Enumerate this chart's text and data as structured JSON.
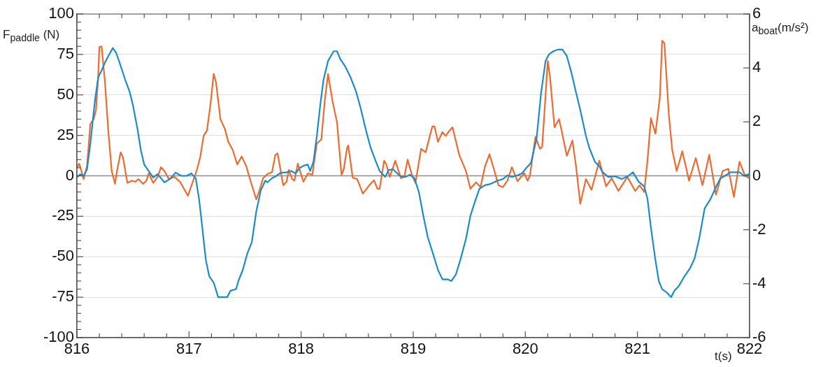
{
  "chart_data": {
    "type": "line",
    "xlabel": "t(s)",
    "ylabel": "F$_{paddle}$ (N)",
    "y2label": "a$_{boat}$(m/s²)",
    "xlim": [
      816,
      822
    ],
    "xticks": [
      816,
      {
        "value": 816.2,
        "label": null
      },
      {
        "value": 816.4,
        "label": null
      },
      {
        "value": 816.6,
        "label": null
      },
      {
        "value": 816.8,
        "label": null
      },
      817,
      {
        "value": 817.2,
        "label": null
      },
      {
        "value": 817.4,
        "label": null
      },
      {
        "value": 817.6,
        "label": null
      },
      {
        "value": 817.8,
        "label": null
      },
      818,
      {
        "value": 818.2,
        "label": null
      },
      {
        "value": 818.4,
        "label": null
      },
      {
        "value": 818.6,
        "label": null
      },
      {
        "value": 818.8,
        "label": null
      },
      819,
      {
        "value": 819.2,
        "label": null
      },
      {
        "value": 819.4,
        "label": null
      },
      {
        "value": 819.6,
        "label": null
      },
      {
        "value": 819.8,
        "label": null
      },
      820,
      {
        "value": 820.2,
        "label": null
      },
      {
        "value": 820.4,
        "label": null
      },
      {
        "value": 820.6,
        "label": null
      },
      {
        "value": 820.8,
        "label": null
      },
      821,
      {
        "value": 821.2,
        "label": null
      },
      {
        "value": 821.4,
        "label": null
      },
      {
        "value": 821.6,
        "label": null
      },
      {
        "value": 821.8,
        "label": null
      },
      822
    ],
    "ylim": [
      -100,
      100
    ],
    "yticks": [
      -100,
      {
        "value": -95,
        "label": null
      },
      {
        "value": -90,
        "label": null
      },
      {
        "value": -85,
        "label": null
      },
      {
        "value": -80,
        "label": null
      },
      -75,
      {
        "value": -70,
        "label": null
      },
      {
        "value": -65,
        "label": null
      },
      {
        "value": -60,
        "label": null
      },
      {
        "value": -55,
        "label": null
      },
      -50,
      {
        "value": -45,
        "label": null
      },
      {
        "value": -40,
        "label": null
      },
      {
        "value": -35,
        "label": null
      },
      {
        "value": -30,
        "label": null
      },
      -25,
      {
        "value": -20,
        "label": null
      },
      {
        "value": -15,
        "label": null
      },
      {
        "value": -10,
        "label": null
      },
      {
        "value": -5,
        "label": null
      },
      0,
      {
        "value": 5,
        "label": null
      },
      {
        "value": 10,
        "label": null
      },
      {
        "value": 15,
        "label": null
      },
      {
        "value": 20,
        "label": null
      },
      25,
      {
        "value": 30,
        "label": null
      },
      {
        "value": 35,
        "label": null
      },
      {
        "value": 40,
        "label": null
      },
      {
        "value": 45,
        "label": null
      },
      50,
      {
        "value": 55,
        "label": null
      },
      {
        "value": 60,
        "label": null
      },
      {
        "value": 65,
        "label": null
      },
      {
        "value": 70,
        "label": null
      },
      75,
      {
        "value": 80,
        "label": null
      },
      {
        "value": 85,
        "label": null
      },
      {
        "value": 90,
        "label": null
      },
      {
        "value": 95,
        "label": null
      },
      100
    ],
    "y2lim": [
      -6,
      6
    ],
    "y2ticks": [
      -6,
      -4,
      -2,
      0,
      2,
      4,
      6
    ],
    "grid": "y",
    "legend": false,
    "marker": "none",
    "line_style": "solid",
    "ref_lines": [
      {
        "axis": "y",
        "value": 0,
        "color": "#8c8c8c"
      }
    ],
    "series": [
      {
        "color": "#1b8cca",
        "x": [
          816.0,
          816.03,
          816.06,
          816.09,
          816.12,
          816.16,
          816.19,
          816.22,
          816.25,
          816.28,
          816.32,
          816.35,
          816.38,
          816.43,
          816.47,
          816.5,
          816.54,
          816.57,
          816.6,
          816.64,
          816.68,
          816.72,
          816.78,
          816.83,
          816.88,
          816.93,
          816.98,
          817.02,
          817.06,
          817.09,
          817.12,
          817.15,
          817.18,
          817.22,
          817.26,
          817.34,
          817.37,
          817.42,
          817.44,
          817.48,
          817.52,
          817.56,
          817.6,
          817.64,
          817.68,
          817.7,
          817.74,
          817.78,
          817.82,
          817.86,
          817.91,
          817.95,
          817.99,
          818.03,
          818.06,
          818.08,
          818.11,
          818.14,
          818.17,
          818.2,
          818.24,
          818.29,
          818.32,
          818.35,
          818.39,
          818.44,
          818.49,
          818.53,
          818.58,
          818.62,
          818.66,
          818.7,
          818.75,
          818.78,
          818.82,
          818.88,
          818.93,
          818.97,
          819.01,
          819.05,
          819.09,
          819.13,
          819.18,
          819.22,
          819.26,
          819.31,
          819.34,
          819.38,
          819.42,
          819.47,
          819.51,
          819.55,
          819.59,
          819.64,
          819.69,
          819.75,
          819.8,
          819.84,
          819.88,
          819.93,
          819.97,
          820.01,
          820.05,
          820.1,
          820.14,
          820.18,
          820.21,
          820.25,
          820.29,
          820.33,
          820.37,
          820.41,
          820.45,
          820.49,
          820.54,
          820.57,
          820.62,
          820.66,
          820.69,
          820.74,
          820.8,
          820.86,
          820.92,
          820.96,
          821.01,
          821.06,
          821.09,
          821.12,
          821.16,
          821.19,
          821.22,
          821.26,
          821.3,
          821.33,
          821.37,
          821.42,
          821.47,
          821.51,
          821.55,
          821.6,
          821.65,
          821.7,
          821.74,
          821.78,
          821.83,
          821.91,
          821.95,
          822.0
        ],
        "values": [
          -1,
          1,
          0,
          4,
          20,
          46,
          61,
          65,
          70,
          74,
          79,
          76,
          70,
          59.5,
          52,
          43.5,
          29,
          16,
          7,
          3,
          -1,
          1,
          -4,
          -2,
          2,
          0,
          0,
          1.5,
          -1.5,
          -14.5,
          -33,
          -52,
          -62,
          -66,
          -75,
          -75,
          -71,
          -70,
          -65,
          -58,
          -48,
          -41,
          -22,
          -9,
          -3,
          -4,
          -1.5,
          0,
          2,
          2,
          3,
          1.5,
          5,
          6.5,
          7,
          3,
          8.7,
          24.7,
          43.5,
          59.5,
          71,
          77,
          77,
          72,
          68,
          61,
          52,
          42,
          27.6,
          17.4,
          10,
          3,
          -0.7,
          3.6,
          4,
          0,
          -0.7,
          0.7,
          -1.5,
          -10,
          -24.7,
          -38,
          -49,
          -58,
          -64,
          -64,
          -65,
          -61,
          -52,
          -39,
          -24.7,
          -16,
          -8,
          -5.8,
          -5,
          -3,
          -2,
          0.3,
          -0.7,
          0.3,
          1.5,
          5,
          8,
          23,
          51,
          71,
          75,
          77,
          78,
          78,
          74,
          64,
          52,
          40.6,
          24.7,
          17.4,
          8.7,
          5.8,
          2.2,
          -0.7,
          -0.3,
          -2,
          0,
          2.2,
          -3.6,
          -6.5,
          -14.5,
          -32,
          -52,
          -65,
          -70,
          -72,
          -75,
          -71,
          -68,
          -62,
          -57,
          -51,
          -39,
          -20,
          -14.5,
          -7,
          -1.5,
          0,
          2.2,
          2.2,
          0,
          1.2
        ]
      },
      {
        "color": "#ee6a2e",
        "axis": "y2",
        "x": [
          816.0,
          816.02,
          816.04,
          816.06,
          816.09,
          816.12,
          816.15,
          816.17,
          816.19,
          816.2,
          816.22,
          816.25,
          816.28,
          816.31,
          816.34,
          816.36,
          816.39,
          816.41,
          816.45,
          816.49,
          816.52,
          816.55,
          816.59,
          816.62,
          816.64,
          816.68,
          816.72,
          816.75,
          816.78,
          816.82,
          816.87,
          816.92,
          816.96,
          816.99,
          817.03,
          817.07,
          817.1,
          817.13,
          817.16,
          817.19,
          817.22,
          817.24,
          817.28,
          817.32,
          817.35,
          817.39,
          817.43,
          817.47,
          817.51,
          817.56,
          817.6,
          817.63,
          817.66,
          817.7,
          817.74,
          817.77,
          817.79,
          817.84,
          817.87,
          817.89,
          817.92,
          817.94,
          817.97,
          818.02,
          818.06,
          818.1,
          818.14,
          818.18,
          818.21,
          818.24,
          818.28,
          818.32,
          818.36,
          818.38,
          818.41,
          818.42,
          818.46,
          818.5,
          818.55,
          818.6,
          818.65,
          818.68,
          818.7,
          818.74,
          818.76,
          818.79,
          818.84,
          818.89,
          818.92,
          818.95,
          818.99,
          819.02,
          819.07,
          819.11,
          819.17,
          819.19,
          819.22,
          819.26,
          819.29,
          819.32,
          819.35,
          819.41,
          819.47,
          819.51,
          819.56,
          819.6,
          819.64,
          819.68,
          819.72,
          819.76,
          819.8,
          819.84,
          819.88,
          819.93,
          819.99,
          820.02,
          820.04,
          820.09,
          820.13,
          820.15,
          820.2,
          820.22,
          820.26,
          820.3,
          820.32,
          820.37,
          820.42,
          820.45,
          820.49,
          820.54,
          820.59,
          820.66,
          820.72,
          820.77,
          820.83,
          820.91,
          820.98,
          821.02,
          821.06,
          821.09,
          821.12,
          821.16,
          821.2,
          821.22,
          821.24,
          821.28,
          821.31,
          821.35,
          821.4,
          821.46,
          821.52,
          821.58,
          821.64,
          821.7,
          821.76,
          821.81,
          821.86,
          821.91,
          821.96,
          822.0
        ],
        "values": [
          0.3,
          0.45,
          0.18,
          -0.12,
          0.36,
          1.92,
          2.1,
          2.44,
          3.66,
          4.77,
          4.8,
          3.48,
          1.66,
          0.18,
          -0.3,
          0.24,
          0.87,
          0.7,
          -0.26,
          -0.18,
          -0.22,
          -0.12,
          -0.3,
          -0.18,
          0.09,
          -0.26,
          -0.04,
          0.32,
          0.18,
          -0.12,
          -0.04,
          -0.22,
          -0.52,
          -0.74,
          -0.26,
          0.22,
          0.7,
          1.48,
          1.68,
          2.61,
          3.78,
          3.48,
          2.1,
          1.74,
          1.26,
          0.96,
          0.42,
          0.72,
          0.36,
          -0.35,
          -0.87,
          -0.52,
          -0.09,
          0.07,
          0.13,
          0.78,
          0.83,
          -0.35,
          -0.22,
          0.22,
          -0.12,
          -0.18,
          0.45,
          -0.22,
          0.09,
          0.04,
          1.2,
          1.35,
          2.76,
          3.78,
          2.76,
          1.98,
          0.04,
          0.24,
          1.04,
          1.13,
          -0.07,
          -0.12,
          -0.66,
          -0.39,
          -0.16,
          -0.48,
          -0.48,
          0.56,
          0.42,
          -0.04,
          0.56,
          -0.09,
          -0.04,
          0.6,
          0,
          -0.26,
          1,
          0.87,
          1.83,
          1.83,
          1.26,
          1.62,
          1.48,
          1.66,
          1.8,
          0.78,
          0.18,
          -0.48,
          -0.24,
          -0.42,
          0.35,
          0.8,
          0.24,
          -0.35,
          -0.42,
          -0.18,
          0.32,
          -0.2,
          0.1,
          -0.18,
          0,
          1.44,
          1,
          1.08,
          4.26,
          3.66,
          1.8,
          2.1,
          1.74,
          0.74,
          1.31,
          0.42,
          -1.04,
          -0.12,
          -0.52,
          0.56,
          -0.39,
          -0.09,
          -0.56,
          -0.04,
          -0.56,
          -0.35,
          -0.6,
          0.6,
          2.14,
          1.56,
          2.92,
          5.01,
          4.92,
          2.26,
          0.96,
          0.18,
          0.91,
          -0.18,
          0.66,
          -0.35,
          0.78,
          -0.7,
          0.18,
          0.26,
          -0.78,
          0.52,
          0,
          -0.09
        ]
      }
    ]
  }
}
